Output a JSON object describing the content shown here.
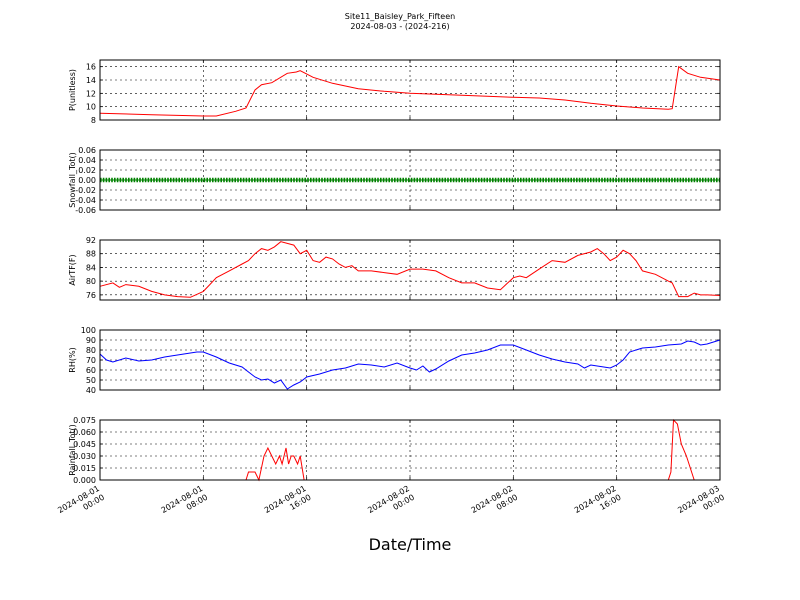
{
  "figure": {
    "title": "Site11_Baisley_Park_Fifteen",
    "subtitle": "2024-08-03 - (2024-216)",
    "xlabel": "Date/Time",
    "x_tick_labels": [
      [
        "2024-08-01",
        "00:00"
      ],
      [
        "2024-08-01",
        "08:00"
      ],
      [
        "2024-08-01",
        "16:00"
      ],
      [
        "2024-08-02",
        "00:00"
      ],
      [
        "2024-08-02",
        "08:00"
      ],
      [
        "2024-08-02",
        "16:00"
      ],
      [
        "2024-08-03",
        "00:00"
      ]
    ]
  },
  "chart_data": [
    {
      "type": "line",
      "ylabel": "P(unitless)",
      "color": "#ff0000",
      "ylim": [
        8,
        17
      ],
      "yticks": [
        8,
        10,
        12,
        14,
        16
      ],
      "ytick_labels": [
        "8",
        "10",
        "12",
        "14",
        "16"
      ],
      "grid": true,
      "x": [
        0,
        4,
        8,
        9,
        10.5,
        11.3,
        12,
        12.5,
        13.3,
        14.5,
        15.2,
        15.5,
        16.5,
        18,
        20,
        22,
        24,
        28,
        32,
        34,
        36,
        38,
        40,
        42,
        44,
        44.3,
        44.8,
        45.5,
        46.5,
        48
      ],
      "y": [
        9.0,
        8.8,
        8.6,
        8.6,
        9.3,
        9.8,
        12.5,
        13.3,
        13.6,
        15.0,
        15.2,
        15.4,
        14.4,
        13.5,
        12.7,
        12.3,
        12.0,
        11.7,
        11.4,
        11.3,
        11.0,
        10.5,
        10.1,
        9.8,
        9.6,
        9.7,
        16.0,
        15.0,
        14.4,
        14.0
      ],
      "x_units": "hours from 2024-08-01 00:00"
    },
    {
      "type": "line",
      "ylabel": "Snowfall_Tot()",
      "color": "#008000",
      "ylim": [
        -0.06,
        0.06
      ],
      "yticks": [
        -0.06,
        -0.04,
        -0.02,
        0.0,
        0.02,
        0.04,
        0.06
      ],
      "ytick_labels": [
        "-0.06",
        "-0.04",
        "-0.02",
        "0.00",
        "0.02",
        "0.04",
        "0.06"
      ],
      "grid": true,
      "x": [
        0,
        48
      ],
      "y": [
        0.0,
        0.0
      ],
      "markers": true,
      "x_units": "hours from 2024-08-01 00:00"
    },
    {
      "type": "line",
      "ylabel": "AirTF(F)",
      "color": "#ff0000",
      "ylim": [
        74.5,
        92
      ],
      "yticks": [
        76,
        80,
        84,
        88,
        92
      ],
      "ytick_labels": [
        "76",
        "80",
        "84",
        "88",
        "92"
      ],
      "grid": true,
      "x": [
        0,
        1,
        1.5,
        2,
        3,
        4,
        5,
        6,
        7,
        8,
        8.5,
        9,
        10,
        11,
        11.5,
        12,
        12.5,
        13,
        13.5,
        14,
        14.5,
        15,
        15.5,
        16,
        16.5,
        17,
        17.5,
        18,
        18.5,
        19,
        19.5,
        20,
        21,
        22,
        23,
        24,
        25,
        26,
        27,
        28,
        29,
        30,
        31,
        32,
        32.5,
        33,
        34,
        35,
        36,
        37,
        38,
        38.5,
        39,
        39.5,
        40,
        40.5,
        41,
        41.5,
        42,
        43,
        44,
        44.3,
        44.8,
        45.5,
        46,
        46.5,
        47,
        48
      ],
      "y": [
        78.5,
        79.5,
        78.2,
        79,
        78.5,
        77,
        76,
        75.5,
        75.3,
        77,
        79,
        81,
        83,
        85,
        86,
        88,
        89.5,
        89,
        90,
        91.5,
        91,
        90.5,
        88,
        89,
        86,
        85.5,
        87,
        86.5,
        85,
        84,
        84.5,
        83,
        83,
        82.5,
        82,
        83.5,
        83.5,
        83,
        81,
        79.5,
        79.5,
        78,
        77.5,
        81,
        81.5,
        81,
        83.5,
        86,
        85.5,
        87.5,
        88.5,
        89.5,
        88,
        86,
        87,
        89,
        88,
        86,
        83,
        82,
        80,
        79.5,
        75.5,
        75.5,
        76.5,
        76,
        76,
        75.8
      ],
      "x_units": "hours from 2024-08-01 00:00"
    },
    {
      "type": "line",
      "ylabel": "RH(%)",
      "color": "#0000ff",
      "ylim": [
        40,
        100
      ],
      "yticks": [
        40,
        50,
        60,
        70,
        80,
        90,
        100
      ],
      "ytick_labels": [
        "40",
        "50",
        "60",
        "70",
        "80",
        "90",
        "100"
      ],
      "grid": true,
      "x": [
        0,
        0.5,
        1,
        2,
        3,
        4,
        5,
        6,
        7,
        7.5,
        8,
        9,
        10,
        11,
        11.5,
        12,
        12.5,
        13,
        13.5,
        14,
        14.5,
        15,
        15.5,
        16,
        17,
        18,
        19,
        19.5,
        20,
        21,
        22,
        23,
        24,
        24.5,
        25,
        25.5,
        26,
        27,
        28,
        29,
        30,
        31,
        32,
        33,
        34,
        35,
        36,
        37,
        37.5,
        38,
        39,
        39.5,
        40,
        40.5,
        41,
        42,
        43,
        44,
        45,
        45.5,
        46,
        46.5,
        47,
        47.5,
        48
      ],
      "y": [
        76,
        70,
        68,
        72,
        69,
        70,
        73,
        75,
        77,
        78,
        78,
        73,
        67,
        63,
        58,
        53,
        50,
        51,
        47,
        50,
        41,
        45,
        48,
        53,
        56,
        60,
        62,
        64,
        66,
        65,
        63,
        67,
        62,
        60,
        64,
        58,
        61,
        69,
        75,
        77,
        80,
        85,
        85,
        80,
        75,
        71,
        68,
        66,
        62,
        65,
        63,
        62,
        65,
        70,
        78,
        82,
        83,
        85,
        86,
        89,
        88,
        85,
        86,
        88,
        90
      ],
      "x_units": "hours from 2024-08-01 00:00"
    },
    {
      "type": "line",
      "ylabel": "Rainfall_Tot()",
      "color": "#ff0000",
      "ylim": [
        0,
        0.075
      ],
      "yticks": [
        0.0,
        0.015,
        0.03,
        0.045,
        0.06,
        0.075
      ],
      "ytick_labels": [
        "0.000",
        "0.015",
        "0.030",
        "0.045",
        "0.060",
        "0.075"
      ],
      "grid": true,
      "x": [
        0,
        11.3,
        11.5,
        12,
        12.3,
        12.7,
        13,
        13.3,
        13.6,
        13.9,
        14.1,
        14.4,
        14.6,
        14.8,
        15,
        15.3,
        15.5,
        15.8,
        16,
        44,
        44.2,
        44.4,
        44.7,
        45,
        45.4,
        46,
        48
      ],
      "y": [
        0,
        0,
        0.01,
        0.01,
        0,
        0.03,
        0.04,
        0.03,
        0.02,
        0.03,
        0.02,
        0.04,
        0.02,
        0.03,
        0.03,
        0.02,
        0.03,
        0,
        0,
        0,
        0.01,
        0.075,
        0.07,
        0.045,
        0.03,
        0,
        0
      ],
      "x_units": "hours from 2024-08-01 00:00"
    }
  ]
}
